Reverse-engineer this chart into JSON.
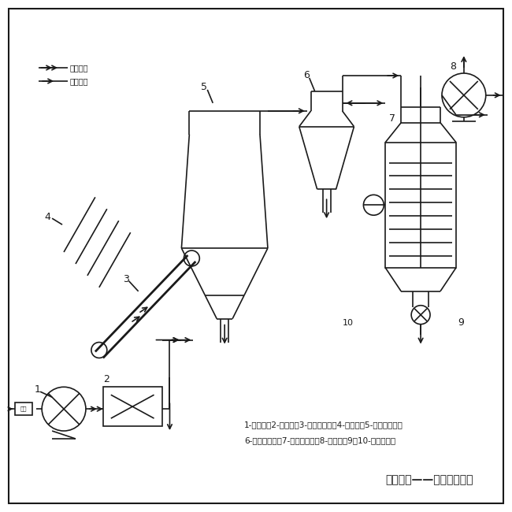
{
  "bg_color": "#ffffff",
  "line_color": "#1a1a1a",
  "title_text": "臻诚干燥——真诚为您服务",
  "legend_hot": "热风进口",
  "legend_cold": "冷风进口",
  "caption_line1": "1-鼓风机；2-加热器；3-皮带输送机；4-搓料机；5-单层流化床；",
  "caption_line2": "6-旋风除尘器；7-布袋除尘器；8-引风机；9、10-密封卸料器"
}
